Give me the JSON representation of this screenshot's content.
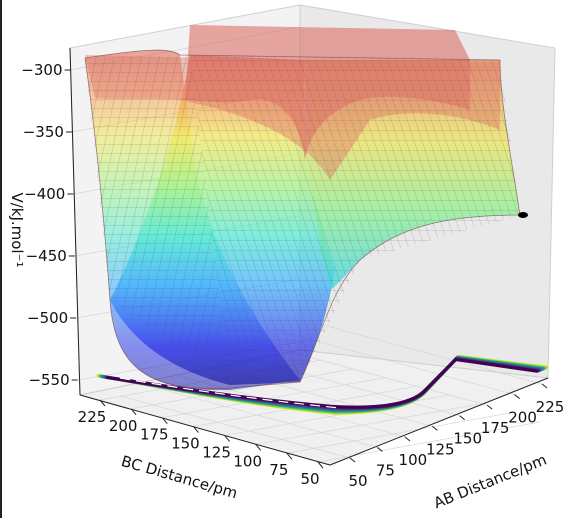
{
  "chart_data": {
    "type": "surface3d",
    "title": "",
    "xlabel": "AB Distance/pm",
    "ylabel": "BC Distance/pm",
    "zlabel": "V/kJ.mol⁻¹",
    "x_ticks": [
      "50",
      "75",
      "100",
      "125",
      "150",
      "175",
      "200",
      "225"
    ],
    "y_ticks": [
      "225",
      "200",
      "175",
      "150",
      "125",
      "100",
      "75",
      "50"
    ],
    "z_ticks": [
      "−300",
      "−350",
      "−400",
      "−450",
      "−500",
      "−550"
    ],
    "xlim": [
      50,
      240
    ],
    "ylim": [
      50,
      240
    ],
    "zlim": [
      -560,
      -290
    ],
    "z_cap": -300,
    "reactant_valley_min": -558,
    "trajectory_end": {
      "x": 235,
      "y": 228,
      "z": -414
    },
    "colormap_surface": "jet",
    "colormap_contour": "viridis",
    "grid": true
  }
}
